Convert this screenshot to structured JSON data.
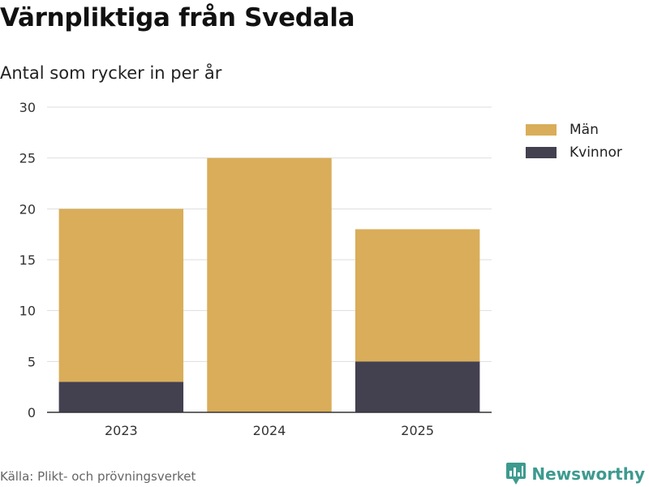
{
  "header": {
    "title": "Värnpliktiga från Svedala",
    "subtitle": "Antal som rycker in per år"
  },
  "colors": {
    "man": "#d9ad59",
    "kvinnor": "#434050",
    "grid": "#dedede",
    "axis": "#333333",
    "brand": "#3d9a8f"
  },
  "chart_data": {
    "type": "bar",
    "stacked": true,
    "title": "Värnpliktiga från Svedala",
    "subtitle": "Antal som rycker in per år",
    "categories": [
      "2023",
      "2024",
      "2025"
    ],
    "series": [
      {
        "name": "Kvinnor",
        "values": [
          3,
          0,
          5
        ]
      },
      {
        "name": "Män",
        "values": [
          17,
          25,
          13
        ]
      }
    ],
    "xlabel": "",
    "ylabel": "",
    "ylim": [
      0,
      30
    ],
    "yticks": [
      "0",
      "5",
      "10",
      "15",
      "20",
      "25",
      "30"
    ],
    "grid": true,
    "legend_position": "right"
  },
  "legend": {
    "items": [
      {
        "label": "Män"
      },
      {
        "label": "Kvinnor"
      }
    ]
  },
  "footer": {
    "source": "Källa: Plikt- och prövningsverket",
    "brand": "Newsworthy"
  }
}
